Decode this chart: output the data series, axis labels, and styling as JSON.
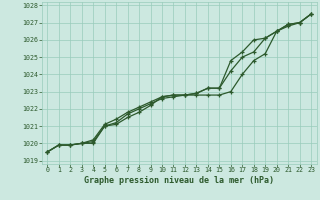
{
  "title": "Graphe pression niveau de la mer (hPa)",
  "bg_color": "#cce8e0",
  "grid_color": "#99ccbb",
  "line_color": "#2d5a2d",
  "xlim": [
    -0.5,
    23.5
  ],
  "ylim": [
    1018.8,
    1028.2
  ],
  "yticks": [
    1019,
    1020,
    1021,
    1022,
    1023,
    1024,
    1025,
    1026,
    1027,
    1028
  ],
  "xticks": [
    0,
    1,
    2,
    3,
    4,
    5,
    6,
    7,
    8,
    9,
    10,
    11,
    12,
    13,
    14,
    15,
    16,
    17,
    18,
    19,
    20,
    21,
    22,
    23
  ],
  "hours": [
    0,
    1,
    2,
    3,
    4,
    5,
    6,
    7,
    8,
    9,
    10,
    11,
    12,
    13,
    14,
    15,
    16,
    17,
    18,
    19,
    20,
    21,
    22,
    23
  ],
  "line1": [
    1019.5,
    1019.9,
    1019.9,
    1020.0,
    1020.0,
    1021.0,
    1021.1,
    1021.5,
    1021.8,
    1022.2,
    1022.7,
    1022.8,
    1022.8,
    1022.8,
    1022.8,
    1022.8,
    1023.0,
    1024.0,
    1024.8,
    1025.2,
    1026.5,
    1026.9,
    1027.0,
    1027.5
  ],
  "line2": [
    1019.5,
    1019.9,
    1019.9,
    1020.0,
    1020.2,
    1021.1,
    1021.4,
    1021.8,
    1022.1,
    1022.4,
    1022.7,
    1022.8,
    1022.8,
    1022.9,
    1023.2,
    1023.2,
    1024.8,
    1025.3,
    1026.0,
    1026.1,
    1026.5,
    1026.8,
    1027.0,
    1027.5
  ],
  "line3": [
    1019.5,
    1019.9,
    1019.9,
    1020.0,
    1020.1,
    1021.0,
    1021.2,
    1021.7,
    1022.0,
    1022.3,
    1022.6,
    1022.7,
    1022.8,
    1022.9,
    1023.2,
    1023.2,
    1024.2,
    1025.0,
    1025.3,
    1026.1,
    1026.5,
    1026.9,
    1027.0,
    1027.5
  ]
}
